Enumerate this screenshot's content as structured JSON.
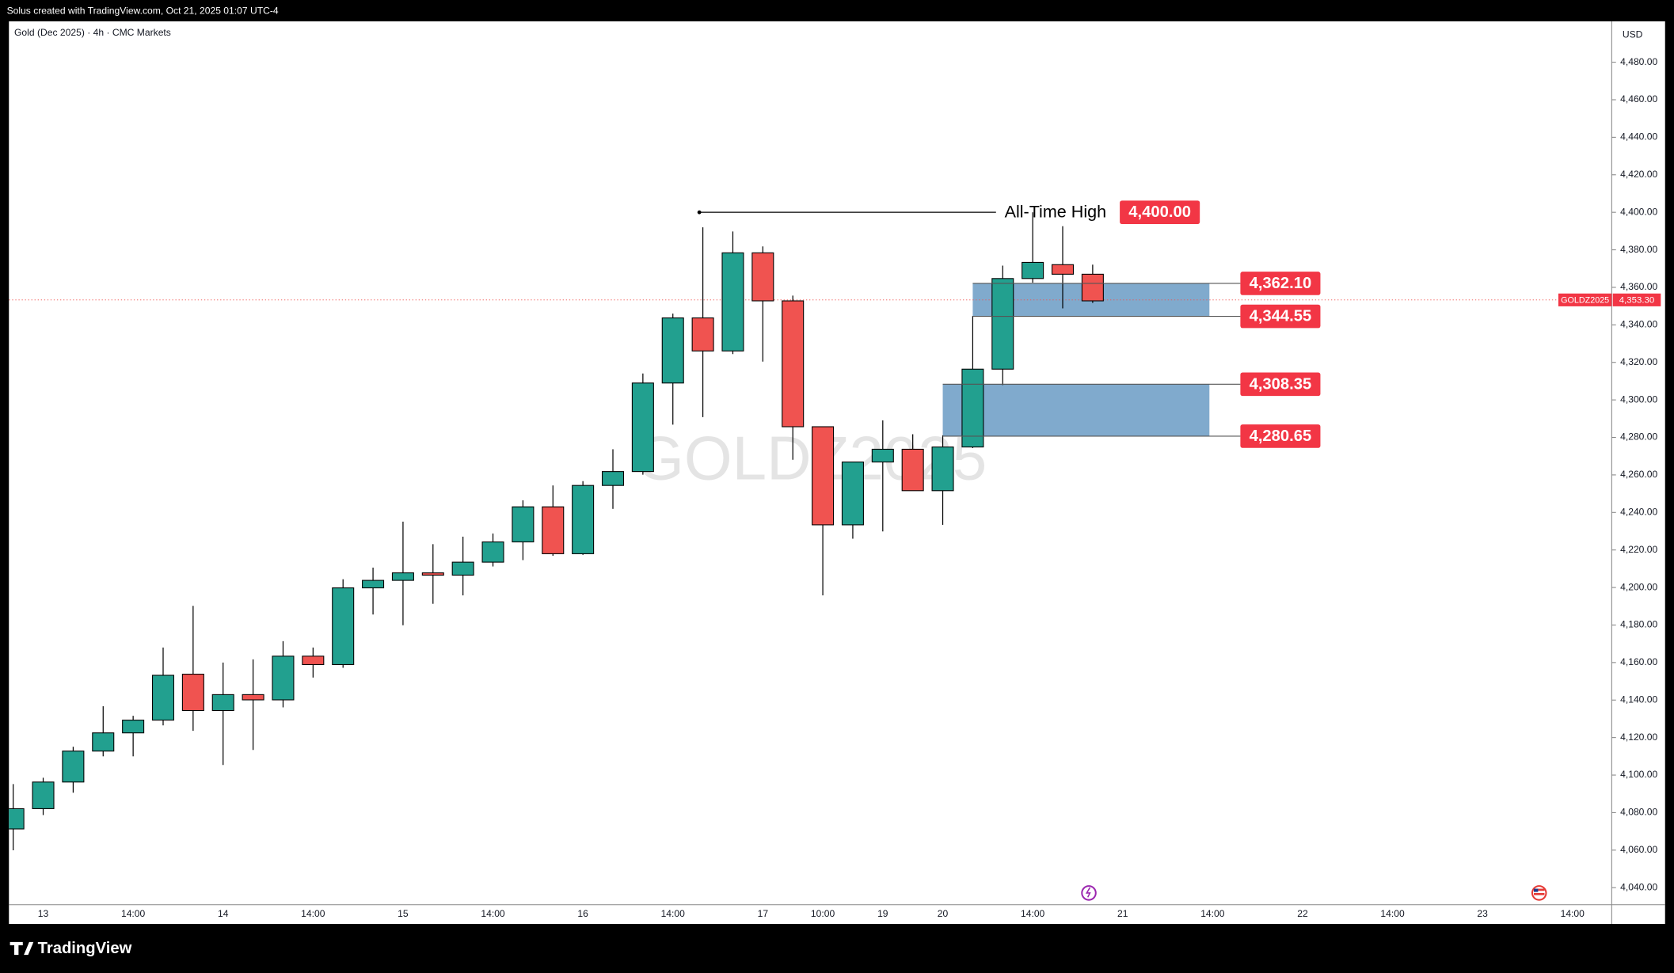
{
  "credit": "Solus created with TradingView.com, Oct 21, 2025 01:07 UTC-4",
  "brand": "TradingView",
  "chart_data": {
    "type": "candlestick",
    "title": "Gold (Dec 2025) · 4h · CMC Markets",
    "symbol": "GOLDZ2025",
    "currency": "USD",
    "up_color": "#22a08f",
    "down_color": "#f05350",
    "categories": [
      null,
      "13",
      null,
      null,
      "14:00",
      null,
      null,
      "14",
      null,
      null,
      "14:00",
      null,
      null,
      "15",
      null,
      null,
      "14:00",
      null,
      null,
      "16",
      null,
      null,
      "14:00",
      null,
      null,
      "17",
      null,
      "10:00",
      null,
      "19",
      null,
      "20",
      null,
      null,
      "14:00",
      null,
      null,
      "21",
      null,
      null,
      "14:00",
      null,
      null,
      "22",
      null,
      null,
      "14:00",
      null,
      null,
      "23",
      null,
      null,
      "14:00"
    ],
    "open": [
      4071.3,
      4082.1,
      4096.3,
      4112.8,
      4122.5,
      4129.3,
      4153.8,
      4134.4,
      4142.9,
      4140.1,
      4163.4,
      4158.9,
      4199.8,
      4203.8,
      4207.8,
      4206.6,
      4213.5,
      4224.3,
      4243.0,
      4218.0,
      4254.4,
      4261.8,
      4309.0,
      4343.7,
      4326.1,
      4378.4,
      4352.8,
      4285.7,
      4233.4,
      4266.9,
      4273.7,
      4251.6,
      4274.9,
      4316.4,
      4364.7,
      4372.1,
      4367.0,
      null,
      null,
      null,
      null,
      null,
      null,
      null,
      null,
      null,
      null,
      null,
      null,
      null,
      null,
      null,
      null
    ],
    "high": [
      4095.2,
      4098.6,
      4115.1,
      4136.7,
      4131.6,
      4168.0,
      4190.2,
      4160.0,
      4161.7,
      4171.4,
      4168.0,
      4204.4,
      4210.6,
      4235.1,
      4223.1,
      4227.1,
      4228.8,
      4246.5,
      4254.4,
      4256.7,
      4273.7,
      4314.1,
      4346.0,
      4392.0,
      4389.8,
      4381.8,
      4355.6,
      4285.7,
      4266.9,
      4289.1,
      4281.7,
      4281.1,
      4344.8,
      4371.6,
      4400.0,
      4392.6,
      4372.1,
      null,
      null,
      null,
      null,
      null,
      null,
      null,
      null,
      null,
      null,
      null,
      null,
      null,
      null,
      null,
      null
    ],
    "low": [
      4059.9,
      4078.7,
      4090.6,
      4110.0,
      4110.0,
      4126.5,
      4123.6,
      4105.4,
      4113.4,
      4136.1,
      4152.0,
      4157.2,
      4185.6,
      4179.9,
      4191.3,
      4195.8,
      4211.2,
      4214.6,
      4216.9,
      4217.4,
      4241.9,
      4260.1,
      4286.8,
      4290.8,
      4324.4,
      4320.4,
      4268.1,
      4195.8,
      4226.0,
      4229.9,
      4251.6,
      4233.4,
      4274.3,
      4307.9,
      4362.5,
      4348.8,
      4351.7,
      null,
      null,
      null,
      null,
      null,
      null,
      null,
      null,
      null,
      null,
      null,
      null,
      null,
      null,
      null,
      null
    ],
    "close": [
      4082.1,
      4096.3,
      4112.8,
      4122.5,
      4129.3,
      4153.2,
      4134.4,
      4142.9,
      4140.1,
      4163.4,
      4158.9,
      4199.8,
      4203.8,
      4207.8,
      4206.6,
      4213.5,
      4224.3,
      4243.0,
      4218.0,
      4254.4,
      4261.8,
      4309.0,
      4343.7,
      4326.1,
      4378.4,
      4352.8,
      4285.7,
      4233.4,
      4266.9,
      4273.7,
      4251.6,
      4274.9,
      4316.4,
      4364.7,
      4373.3,
      4367.0,
      4352.8,
      null,
      null,
      null,
      null,
      null,
      null,
      null,
      null,
      null,
      null,
      null,
      null,
      null,
      null,
      null,
      null
    ],
    "ylim": [
      4030.9,
      4501.8
    ],
    "yticks": [
      {
        "value": 4040,
        "label": "4,040.00"
      },
      {
        "value": 4060,
        "label": "4,060.00"
      },
      {
        "value": 4080,
        "label": "4,080.00"
      },
      {
        "value": 4100,
        "label": "4,100.00"
      },
      {
        "value": 4120,
        "label": "4,120.00"
      },
      {
        "value": 4140,
        "label": "4,140.00"
      },
      {
        "value": 4160,
        "label": "4,160.00"
      },
      {
        "value": 4180,
        "label": "4,180.00"
      },
      {
        "value": 4200,
        "label": "4,200.00"
      },
      {
        "value": 4220,
        "label": "4,220.00"
      },
      {
        "value": 4240,
        "label": "4,240.00"
      },
      {
        "value": 4260,
        "label": "4,260.00"
      },
      {
        "value": 4280,
        "label": "4,280.00"
      },
      {
        "value": 4300,
        "label": "4,300.00"
      },
      {
        "value": 4320,
        "label": "4,320.00"
      },
      {
        "value": 4340,
        "label": "4,340.00"
      },
      {
        "value": 4360,
        "label": "4,360.00"
      },
      {
        "value": 4380,
        "label": "4,380.00"
      },
      {
        "value": 4400,
        "label": "4,400.00"
      },
      {
        "value": 4420,
        "label": "4,420.00"
      },
      {
        "value": 4440,
        "label": "4,440.00"
      },
      {
        "value": 4460,
        "label": "4,460.00"
      },
      {
        "value": 4480,
        "label": "4,480.00"
      }
    ],
    "grid": false,
    "ath": {
      "text": "All-Time High",
      "value": 4400,
      "label": "4,400.00"
    },
    "levels": [
      {
        "value": 4362.1,
        "label": "4,362.10"
      },
      {
        "value": 4344.55,
        "label": "4,344.55"
      },
      {
        "value": 4308.35,
        "label": "4,308.35"
      },
      {
        "value": 4280.65,
        "label": "4,280.65"
      }
    ],
    "last_price": {
      "value": 4353.3,
      "label": "4,353.30"
    }
  }
}
